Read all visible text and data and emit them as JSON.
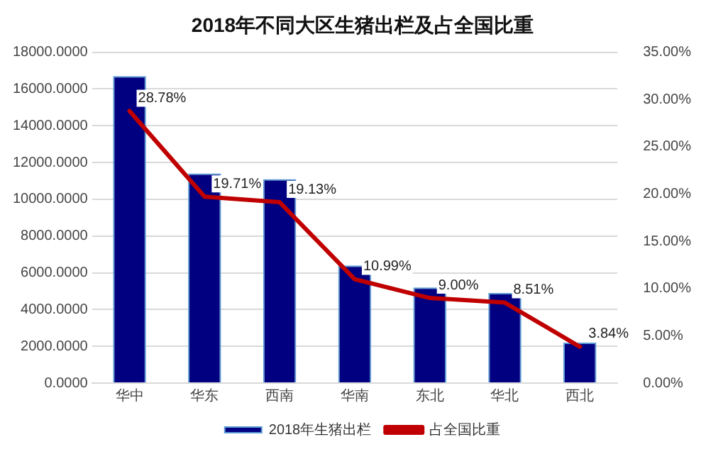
{
  "chart_data": {
    "type": "bar",
    "title": "2018年不同大区生猪出栏及占全国比重",
    "categories": [
      "华中",
      "华东",
      "西南",
      "华南",
      "东北",
      "华北",
      "西北"
    ],
    "series": [
      {
        "name": "2018年生猪出栏",
        "color": "#000080",
        "values": [
          16700,
          11400,
          11100,
          6400,
          5200,
          4900,
          2200
        ]
      },
      {
        "name": "占全国比重",
        "type": "line",
        "axis": "y2",
        "color": "#c00000",
        "values": [
          28.78,
          19.71,
          19.13,
          10.99,
          9.0,
          8.51,
          3.84
        ],
        "value_labels": [
          "28.78%",
          "19.71%",
          "19.13%",
          "10.99%",
          "9.00%",
          "8.51%",
          "3.84%"
        ]
      }
    ],
    "ylim": [
      0,
      18000
    ],
    "yticks": [
      {
        "value": 0,
        "label": "0.0000"
      },
      {
        "value": 2000,
        "label": "2000.0000"
      },
      {
        "value": 4000,
        "label": "4000.0000"
      },
      {
        "value": 6000,
        "label": "6000.0000"
      },
      {
        "value": 8000,
        "label": "8000.0000"
      },
      {
        "value": 10000,
        "label": "10000.0000"
      },
      {
        "value": 12000,
        "label": "12000.0000"
      },
      {
        "value": 14000,
        "label": "14000.0000"
      },
      {
        "value": 16000,
        "label": "16000.0000"
      },
      {
        "value": 18000,
        "label": "18000.0000"
      }
    ],
    "y2lim": [
      0,
      35
    ],
    "y2ticks": [
      {
        "value": 0,
        "label": "0.00%"
      },
      {
        "value": 5,
        "label": "5.00%"
      },
      {
        "value": 10,
        "label": "10.00%"
      },
      {
        "value": 15,
        "label": "15.00%"
      },
      {
        "value": 20,
        "label": "20.00%"
      },
      {
        "value": 25,
        "label": "25.00%"
      },
      {
        "value": 30,
        "label": "30.00%"
      },
      {
        "value": 35,
        "label": "35.00%"
      }
    ],
    "grid": "y",
    "legend": "bottom",
    "marker": "none",
    "line_style": "solid"
  }
}
